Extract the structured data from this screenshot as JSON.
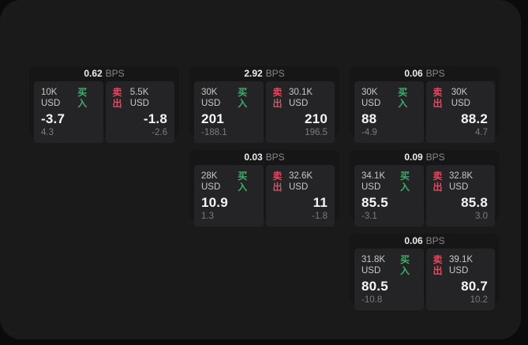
{
  "labels": {
    "bps_unit": "BPS",
    "buy": "买入",
    "sell": "卖出"
  },
  "colors": {
    "buy_accent": "#3fae6a",
    "sell_accent": "#d84f63",
    "surface_bg": "#1a1a1b",
    "card_bg": "#161617",
    "pane_bg": "#242426",
    "primary_text": "#f5f5f6",
    "muted_text": "#7b7b7f"
  },
  "cards": [
    {
      "bps": "0.62",
      "buy_amount": "10K USD",
      "buy_price": "-3.7",
      "buy_sub": "4.3",
      "sell_amount": "5.5K USD",
      "sell_price": "-1.8",
      "sell_sub": "-2.6"
    },
    {
      "bps": "2.92",
      "buy_amount": "30K USD",
      "buy_price": "201",
      "buy_sub": "-188.1",
      "sell_amount": "30.1K USD",
      "sell_price": "210",
      "sell_sub": "196.5"
    },
    {
      "bps": "0.06",
      "buy_amount": "30K USD",
      "buy_price": "88",
      "buy_sub": "-4.9",
      "sell_amount": "30K USD",
      "sell_price": "88.2",
      "sell_sub": "4.7"
    },
    {
      "bps": "0.03",
      "buy_amount": "28K USD",
      "buy_price": "10.9",
      "buy_sub": "1.3",
      "sell_amount": "32.6K USD",
      "sell_price": "11",
      "sell_sub": "-1.8"
    },
    {
      "bps": "0.09",
      "buy_amount": "34.1K USD",
      "buy_price": "85.5",
      "buy_sub": "-3.1",
      "sell_amount": "32.8K USD",
      "sell_price": "85.8",
      "sell_sub": "3.0"
    },
    {
      "bps": "0.06",
      "buy_amount": "31.8K USD",
      "buy_price": "80.5",
      "buy_sub": "-10.8",
      "sell_amount": "39.1K USD",
      "sell_price": "80.7",
      "sell_sub": "10.2"
    }
  ]
}
